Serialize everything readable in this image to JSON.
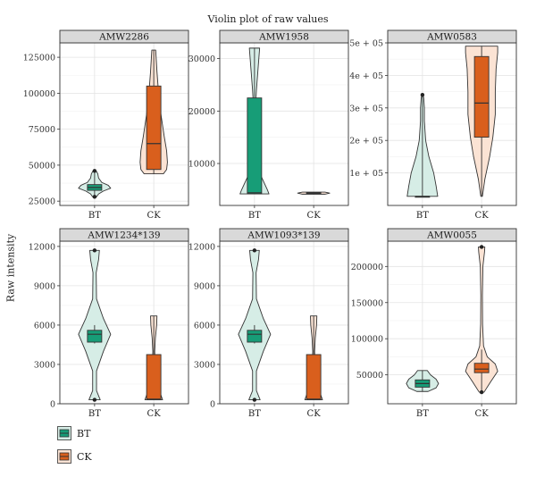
{
  "chart_data": {
    "type": "violin",
    "title": "Violin plot of raw values",
    "ylabel": "Raw intensity",
    "legend": {
      "placement": "bottom-left",
      "entries": [
        {
          "name": "BT",
          "fill": "#179d77",
          "light": "#d6ede6"
        },
        {
          "name": "CK",
          "fill": "#d95f1d",
          "light": "#fbe3d4"
        }
      ]
    },
    "panels": [
      {
        "name": "AMW2286",
        "ylim": [
          22000,
          135000
        ],
        "yticks": [
          25000,
          50000,
          75000,
          100000,
          125000
        ],
        "yticklabels": [
          "25000",
          "50000",
          "75000",
          "100000",
          "125000"
        ],
        "groups": [
          {
            "name": "BT",
            "min": 28000,
            "q1": 32500,
            "median": 34500,
            "q3": 36500,
            "max": 46000,
            "outliers": [
              46000,
              28000
            ],
            "density": [
              [
                28000,
                0.12
              ],
              [
                30000,
                0.25
              ],
              [
                32000,
                0.55
              ],
              [
                34000,
                1.0
              ],
              [
                36000,
                0.85
              ],
              [
                38000,
                0.45
              ],
              [
                41000,
                0.25
              ],
              [
                44000,
                0.2
              ],
              [
                46000,
                0.1
              ]
            ]
          },
          {
            "name": "CK",
            "min": 44000,
            "q1": 47000,
            "median": 65000,
            "q3": 105000,
            "max": 130000,
            "outliers": [],
            "density": [
              [
                44000,
                0.6
              ],
              [
                47000,
                0.8
              ],
              [
                52000,
                0.85
              ],
              [
                60000,
                0.8
              ],
              [
                70000,
                0.65
              ],
              [
                85000,
                0.45
              ],
              [
                100000,
                0.3
              ],
              [
                115000,
                0.2
              ],
              [
                130000,
                0.12
              ]
            ]
          }
        ]
      },
      {
        "name": "AMW1958",
        "ylim": [
          2000,
          33000
        ],
        "yticks": [
          10000,
          20000,
          30000
        ],
        "yticklabels": [
          "10000",
          "20000",
          "30000"
        ],
        "groups": [
          {
            "name": "BT",
            "min": 4200,
            "q1": 4200,
            "median": 4400,
            "q3": 22500,
            "max": 32000,
            "outliers": [],
            "density": [
              [
                4200,
                0.9
              ],
              [
                5000,
                0.8
              ],
              [
                8000,
                0.35
              ],
              [
                12000,
                0.1
              ],
              [
                16000,
                0.04
              ],
              [
                20000,
                0.05
              ],
              [
                24000,
                0.12
              ],
              [
                28000,
                0.22
              ],
              [
                32000,
                0.32
              ]
            ]
          },
          {
            "name": "CK",
            "min": 4150,
            "q1": 4250,
            "median": 4350,
            "q3": 4450,
            "max": 4550,
            "outliers": [],
            "density": [
              [
                4150,
                0.7
              ],
              [
                4350,
                1.0
              ],
              [
                4550,
                0.7
              ]
            ]
          }
        ]
      },
      {
        "name": "AMW0583",
        "ylim": [
          0,
          500000
        ],
        "yticks": [
          100000,
          200000,
          300000,
          400000,
          500000
        ],
        "yticklabels": [
          "1e + 05",
          "2e + 05",
          "3e + 05",
          "4e + 05",
          "5e + 05"
        ],
        "groups": [
          {
            "name": "BT",
            "min": 28000,
            "q1": 28000,
            "median": 28000,
            "q3": 28000,
            "max": 340000,
            "outliers": [
              340000
            ],
            "density": [
              [
                28000,
                0.95
              ],
              [
                60000,
                0.85
              ],
              [
                100000,
                0.7
              ],
              [
                150000,
                0.4
              ],
              [
                200000,
                0.2
              ],
              [
                260000,
                0.12
              ],
              [
                300000,
                0.12
              ],
              [
                330000,
                0.08
              ],
              [
                340000,
                0.04
              ]
            ]
          },
          {
            "name": "CK",
            "min": 28000,
            "q1": 210000,
            "median": 315000,
            "q3": 458000,
            "max": 490000,
            "outliers": [],
            "density": [
              [
                28000,
                0.05
              ],
              [
                80000,
                0.2
              ],
              [
                150000,
                0.5
              ],
              [
                210000,
                0.7
              ],
              [
                280000,
                0.85
              ],
              [
                350000,
                0.85
              ],
              [
                420000,
                0.9
              ],
              [
                470000,
                1.0
              ],
              [
                490000,
                1.0
              ]
            ]
          }
        ]
      },
      {
        "name": "AMW1234*139",
        "ylim": [
          0,
          12400
        ],
        "yticks": [
          0,
          3000,
          6000,
          9000,
          12000
        ],
        "yticklabels": [
          "0",
          "3000",
          "6000",
          "9000",
          "12000"
        ],
        "groups": [
          {
            "name": "BT",
            "min": 4600,
            "q1": 4700,
            "median": 5300,
            "q3": 5600,
            "max": 6000,
            "outliers": [
              11700,
              300
            ],
            "density": [
              [
                300,
                0.35
              ],
              [
                1000,
                0.12
              ],
              [
                2500,
                0.12
              ],
              [
                4000,
                0.55
              ],
              [
                5300,
                1.0
              ],
              [
                6500,
                0.55
              ],
              [
                8000,
                0.12
              ],
              [
                10000,
                0.1
              ],
              [
                11000,
                0.25
              ],
              [
                11700,
                0.3
              ]
            ]
          },
          {
            "name": "CK",
            "min": 300,
            "q1": 300,
            "median": 350,
            "q3": 3750,
            "max": 6700,
            "outliers": [],
            "density": [
              [
                300,
                0.55
              ],
              [
                1000,
                0.35
              ],
              [
                2000,
                0.15
              ],
              [
                3000,
                0.08
              ],
              [
                4000,
                0.06
              ],
              [
                5000,
                0.1
              ],
              [
                6000,
                0.18
              ],
              [
                6700,
                0.2
              ]
            ]
          }
        ]
      },
      {
        "name": "AMW1093*139",
        "ylim": [
          0,
          12400
        ],
        "yticks": [
          0,
          3000,
          6000,
          9000,
          12000
        ],
        "yticklabels": [
          "0",
          "3000",
          "6000",
          "9000",
          "12000"
        ],
        "groups": [
          {
            "name": "BT",
            "min": 4600,
            "q1": 4700,
            "median": 5300,
            "q3": 5600,
            "max": 6000,
            "outliers": [
              11700,
              300
            ],
            "density": [
              [
                300,
                0.35
              ],
              [
                1000,
                0.12
              ],
              [
                2500,
                0.12
              ],
              [
                4000,
                0.55
              ],
              [
                5300,
                1.0
              ],
              [
                6500,
                0.55
              ],
              [
                8000,
                0.12
              ],
              [
                10000,
                0.1
              ],
              [
                11000,
                0.25
              ],
              [
                11700,
                0.3
              ]
            ]
          },
          {
            "name": "CK",
            "min": 300,
            "q1": 300,
            "median": 350,
            "q3": 3750,
            "max": 6700,
            "outliers": [],
            "density": [
              [
                300,
                0.55
              ],
              [
                1000,
                0.35
              ],
              [
                2000,
                0.15
              ],
              [
                3000,
                0.08
              ],
              [
                4000,
                0.06
              ],
              [
                5000,
                0.1
              ],
              [
                6000,
                0.18
              ],
              [
                6700,
                0.2
              ]
            ]
          }
        ]
      },
      {
        "name": "AMW0055",
        "ylim": [
          10000,
          235000
        ],
        "yticks": [
          50000,
          100000,
          150000,
          200000
        ],
        "yticklabels": [
          "50000",
          "100000",
          "150000",
          "200000"
        ],
        "groups": [
          {
            "name": "BT",
            "min": 27000,
            "q1": 33000,
            "median": 38000,
            "q3": 43000,
            "max": 56000,
            "outliers": [],
            "density": [
              [
                27000,
                0.35
              ],
              [
                32000,
                0.85
              ],
              [
                38000,
                1.0
              ],
              [
                44000,
                0.85
              ],
              [
                50000,
                0.5
              ],
              [
                56000,
                0.3
              ]
            ]
          },
          {
            "name": "CK",
            "min": 26000,
            "q1": 53000,
            "median": 58000,
            "q3": 66000,
            "max": 85000,
            "outliers": [
              227000,
              26000
            ],
            "density": [
              [
                26000,
                0.15
              ],
              [
                40000,
                0.55
              ],
              [
                55000,
                1.0
              ],
              [
                65000,
                0.85
              ],
              [
                75000,
                0.35
              ],
              [
                90000,
                0.12
              ],
              [
                120000,
                0.06
              ],
              [
                160000,
                0.05
              ],
              [
                200000,
                0.08
              ],
              [
                220000,
                0.18
              ],
              [
                227000,
                0.2
              ]
            ]
          }
        ]
      }
    ]
  }
}
